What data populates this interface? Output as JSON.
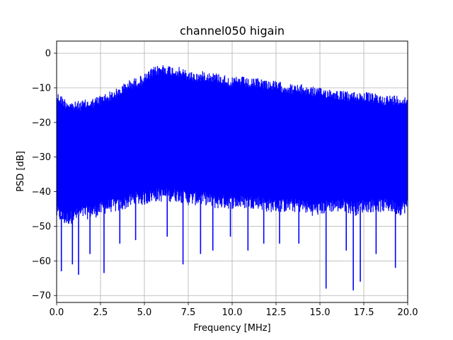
{
  "chart_data": {
    "type": "line",
    "title": "channel050 higain",
    "xlabel": "Frequency [MHz]",
    "ylabel": "PSD [dB]",
    "xlim": [
      0,
      20
    ],
    "ylim": [
      -72,
      3.5
    ],
    "x_ticks": [
      0.0,
      2.5,
      5.0,
      7.5,
      10.0,
      12.5,
      15.0,
      17.5,
      20.0
    ],
    "x_tick_labels": [
      "0.0",
      "2.5",
      "5.0",
      "7.5",
      "10.0",
      "12.5",
      "15.0",
      "17.5",
      "20.0"
    ],
    "y_ticks": [
      0,
      -10,
      -20,
      -30,
      -40,
      -50,
      -60,
      -70
    ],
    "y_tick_labels": [
      "0",
      "−10",
      "−20",
      "−30",
      "−40",
      "−50",
      "−60",
      "−70"
    ],
    "grid": true,
    "series": [
      {
        "color": "#0000ff",
        "upper_envelope": {
          "x": [
            0.0,
            0.5,
            1.0,
            1.5,
            2.0,
            2.5,
            3.0,
            3.5,
            4.0,
            4.5,
            5.0,
            5.5,
            6.0,
            6.5,
            7.0,
            7.5,
            8.0,
            8.5,
            9.0,
            9.5,
            10.0,
            10.5,
            11.0,
            11.5,
            12.0,
            12.5,
            13.0,
            13.5,
            14.0,
            14.5,
            15.0,
            15.5,
            16.0,
            16.5,
            17.0,
            17.5,
            18.0,
            18.5,
            19.0,
            19.5,
            20.0
          ],
          "y": [
            -11,
            -13,
            -14,
            -13.5,
            -13,
            -12,
            -11,
            -10,
            -8,
            -7,
            -6,
            -4,
            -3,
            -3.5,
            -4,
            -5,
            -5.5,
            -5,
            -5.5,
            -6,
            -7,
            -6.5,
            -7.5,
            -7,
            -7.5,
            -8,
            -8.5,
            -9,
            -9,
            -9.5,
            -10,
            -10,
            -10.5,
            -11,
            -11,
            -11,
            -11.5,
            -12,
            -12,
            -12,
            -12.5
          ]
        },
        "lower_envelope": {
          "x": [
            0.0,
            0.5,
            1.0,
            1.5,
            2.0,
            2.5,
            3.0,
            3.5,
            4.0,
            4.5,
            5.0,
            5.5,
            6.0,
            6.5,
            7.0,
            7.5,
            8.0,
            8.5,
            9.0,
            9.5,
            10.0,
            10.5,
            11.0,
            11.5,
            12.0,
            12.5,
            13.0,
            13.5,
            14.0,
            14.5,
            15.0,
            15.5,
            16.0,
            16.5,
            17.0,
            17.5,
            18.0,
            18.5,
            19.0,
            19.5,
            20.0
          ],
          "y": [
            -48,
            -50,
            -49,
            -48,
            -48,
            -47,
            -46,
            -46,
            -45,
            -44,
            -44,
            -43,
            -43,
            -43,
            -43,
            -44,
            -44,
            -44,
            -45,
            -45,
            -45,
            -45,
            -45,
            -45,
            -46,
            -46,
            -46,
            -46,
            -46,
            -47,
            -47,
            -46,
            -46,
            -46,
            -47,
            -46,
            -46,
            -46,
            -46,
            -47,
            -46
          ]
        },
        "deep_dips": [
          {
            "x": 0.27,
            "y": -63
          },
          {
            "x": 0.9,
            "y": -61
          },
          {
            "x": 1.25,
            "y": -64
          },
          {
            "x": 1.9,
            "y": -58
          },
          {
            "x": 2.7,
            "y": -63.5
          },
          {
            "x": 3.6,
            "y": -55
          },
          {
            "x": 4.5,
            "y": -54
          },
          {
            "x": 6.3,
            "y": -53
          },
          {
            "x": 7.2,
            "y": -61
          },
          {
            "x": 8.2,
            "y": -58
          },
          {
            "x": 8.9,
            "y": -57
          },
          {
            "x": 9.9,
            "y": -53
          },
          {
            "x": 10.9,
            "y": -57
          },
          {
            "x": 11.8,
            "y": -55
          },
          {
            "x": 12.7,
            "y": -55
          },
          {
            "x": 13.8,
            "y": -55
          },
          {
            "x": 15.35,
            "y": -68
          },
          {
            "x": 16.5,
            "y": -57
          },
          {
            "x": 16.9,
            "y": -68.5
          },
          {
            "x": 17.3,
            "y": -66
          },
          {
            "x": 18.2,
            "y": -58
          },
          {
            "x": 19.3,
            "y": -62
          }
        ]
      }
    ]
  }
}
